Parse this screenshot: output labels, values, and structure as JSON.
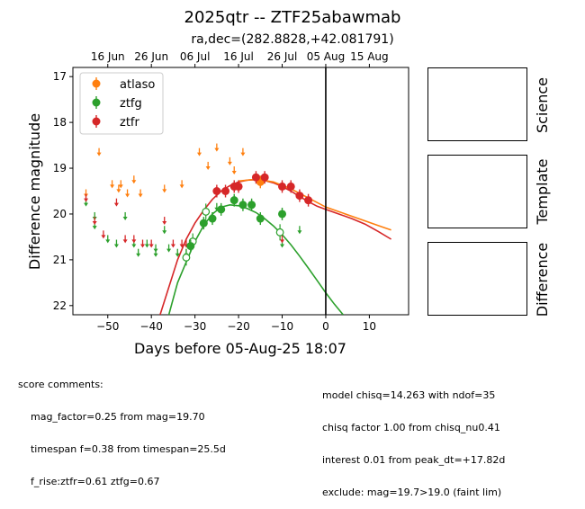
{
  "figure": {
    "title": "2025qtr -- ZTF25abawmab",
    "subtitle": "ra,dec=(282.8828,+42.081791)"
  },
  "chart_data": {
    "type": "scatter",
    "xlabel": "Days before 05-Aug-25 18:07",
    "ylabel": "Difference magnitude",
    "xlim": [
      -58,
      19
    ],
    "ylim": [
      22.2,
      16.8
    ],
    "y_inverted": true,
    "x_ticks": [
      -50,
      -40,
      -30,
      -20,
      -10,
      0,
      10
    ],
    "y_ticks": [
      17,
      18,
      19,
      20,
      21,
      22
    ],
    "top_axis_ticks": [
      {
        "label": "16 Jun",
        "x": -50
      },
      {
        "label": "26 Jun",
        "x": -40
      },
      {
        "label": "06 Jul",
        "x": -30
      },
      {
        "label": "16 Jul",
        "x": -20
      },
      {
        "label": "26 Jul",
        "x": -10
      },
      {
        "label": "05 Aug",
        "x": 0
      },
      {
        "label": "15 Aug",
        "x": 10
      }
    ],
    "reference_line_x": 0,
    "legend_position": "upper-left",
    "colors": {
      "atlaso": "#ff7f0e",
      "ztfg": "#2ca02c",
      "ztfr": "#d62728",
      "reference_line": "#000000"
    },
    "series": [
      {
        "name": "atlaso",
        "color": "#ff7f0e",
        "upper_limits": [
          [
            -55,
            19.5
          ],
          [
            -52,
            18.6
          ],
          [
            -49,
            19.3
          ],
          [
            -47.5,
            19.4
          ],
          [
            -47,
            19.3
          ],
          [
            -45.5,
            19.5
          ],
          [
            -44,
            19.2
          ],
          [
            -42.5,
            19.5
          ],
          [
            -37,
            19.4
          ],
          [
            -33,
            19.3
          ],
          [
            -29,
            18.6
          ],
          [
            -27,
            18.9
          ],
          [
            -25,
            18.5
          ],
          [
            -22,
            18.8
          ],
          [
            -21,
            19.0
          ],
          [
            -19,
            18.6
          ]
        ],
        "detections": [
          [
            -15,
            19.3
          ]
        ]
      },
      {
        "name": "ztfg",
        "color": "#2ca02c",
        "upper_limits": [
          [
            -55,
            19.7
          ],
          [
            -53,
            20.0
          ],
          [
            -53,
            20.2
          ],
          [
            -50,
            20.5
          ],
          [
            -48,
            20.6
          ],
          [
            -46,
            20.0
          ],
          [
            -44,
            20.6
          ],
          [
            -43,
            20.8
          ],
          [
            -41,
            20.6
          ],
          [
            -39,
            20.7
          ],
          [
            -39,
            20.8
          ],
          [
            -37,
            20.3
          ],
          [
            -36,
            20.7
          ],
          [
            -34,
            20.8
          ],
          [
            -32,
            20.8
          ],
          [
            -26,
            20.0
          ],
          [
            -25,
            19.8
          ],
          [
            -10,
            20.6
          ],
          [
            -6,
            20.3
          ]
        ],
        "detections": [
          [
            -31,
            20.7
          ],
          [
            -28,
            20.2
          ],
          [
            -26,
            20.1
          ],
          [
            -24,
            19.9
          ],
          [
            -21,
            19.7
          ],
          [
            -19,
            19.8
          ],
          [
            -17,
            19.8
          ],
          [
            -15,
            20.1
          ],
          [
            -10,
            20.0
          ]
        ],
        "open_points": [
          [
            -32,
            20.95
          ],
          [
            -30.5,
            20.6
          ],
          [
            -27.5,
            19.95
          ],
          [
            -10.5,
            20.4
          ]
        ],
        "fit_curve": [
          [
            -36,
            22.2
          ],
          [
            -34,
            21.5
          ],
          [
            -32,
            21.05
          ],
          [
            -30,
            20.6
          ],
          [
            -28,
            20.25
          ],
          [
            -26,
            20.0
          ],
          [
            -24,
            19.85
          ],
          [
            -22,
            19.8
          ],
          [
            -20,
            19.82
          ],
          [
            -18,
            19.88
          ],
          [
            -16,
            19.97
          ],
          [
            -14,
            20.1
          ],
          [
            -12,
            20.26
          ],
          [
            -10,
            20.45
          ],
          [
            -8,
            20.67
          ],
          [
            -6,
            20.92
          ],
          [
            -4,
            21.18
          ],
          [
            -2,
            21.45
          ],
          [
            0,
            21.72
          ],
          [
            2,
            21.97
          ],
          [
            4,
            22.2
          ]
        ]
      },
      {
        "name": "ztfr",
        "color": "#d62728",
        "upper_limits": [
          [
            -55,
            19.6
          ],
          [
            -53,
            20.1
          ],
          [
            -51,
            20.4
          ],
          [
            -48,
            19.7
          ],
          [
            -46,
            20.5
          ],
          [
            -44,
            20.5
          ],
          [
            -42,
            20.6
          ],
          [
            -40,
            20.6
          ],
          [
            -37,
            20.1
          ],
          [
            -35,
            20.6
          ],
          [
            -33,
            20.6
          ],
          [
            -32,
            20.6
          ],
          [
            -10,
            20.5
          ]
        ],
        "detections": [
          [
            -25,
            19.5
          ],
          [
            -23,
            19.5
          ],
          [
            -21,
            19.4
          ],
          [
            -20,
            19.4
          ],
          [
            -16,
            19.2
          ],
          [
            -14,
            19.2
          ],
          [
            -10,
            19.4
          ],
          [
            -8,
            19.4
          ],
          [
            -6,
            19.6
          ],
          [
            -4,
            19.7
          ]
        ],
        "fit_curve": [
          [
            -38,
            22.2
          ],
          [
            -36,
            21.6
          ],
          [
            -34,
            21.0
          ],
          [
            -32,
            20.55
          ],
          [
            -30,
            20.2
          ],
          [
            -28,
            19.92
          ],
          [
            -26,
            19.68
          ],
          [
            -24,
            19.5
          ],
          [
            -22,
            19.38
          ],
          [
            -20,
            19.3
          ],
          [
            -18,
            19.26
          ],
          [
            -16,
            19.25
          ],
          [
            -14,
            19.27
          ],
          [
            -12,
            19.32
          ],
          [
            -10,
            19.4
          ],
          [
            -8,
            19.5
          ],
          [
            -6,
            19.62
          ],
          [
            -4,
            19.73
          ],
          [
            -2,
            19.83
          ],
          [
            0,
            19.9
          ],
          [
            3,
            20.0
          ],
          [
            6,
            20.1
          ],
          [
            9,
            20.22
          ],
          [
            12,
            20.38
          ],
          [
            15,
            20.55
          ]
        ]
      },
      {
        "name": "orange-fit",
        "color": "#ff7f0e",
        "fit_curve": [
          [
            -20,
            19.28
          ],
          [
            -16,
            19.24
          ],
          [
            -12,
            19.3
          ],
          [
            -8,
            19.45
          ],
          [
            -4,
            19.65
          ],
          [
            0,
            19.85
          ],
          [
            3,
            19.95
          ],
          [
            6,
            20.05
          ],
          [
            9,
            20.15
          ],
          [
            12,
            20.25
          ],
          [
            15,
            20.35
          ]
        ]
      }
    ]
  },
  "side_panels": {
    "labels": [
      "Science",
      "Template",
      "Difference"
    ]
  },
  "comments": {
    "left": [
      "score comments:",
      "    mag_factor=0.25 from mag=19.70",
      "    timespan f=0.38 from timespan=25.5d",
      "    f_rise:ztfr=0.61 ztfg=0.67"
    ],
    "right": [
      "model chisq=14.263 with ndof=35",
      "chisq factor 1.00 from chisq_nu0.41",
      "interest 0.01 from peak_dt=+17.82d",
      "exclude: mag=19.7>19.0 (faint lim)"
    ]
  }
}
